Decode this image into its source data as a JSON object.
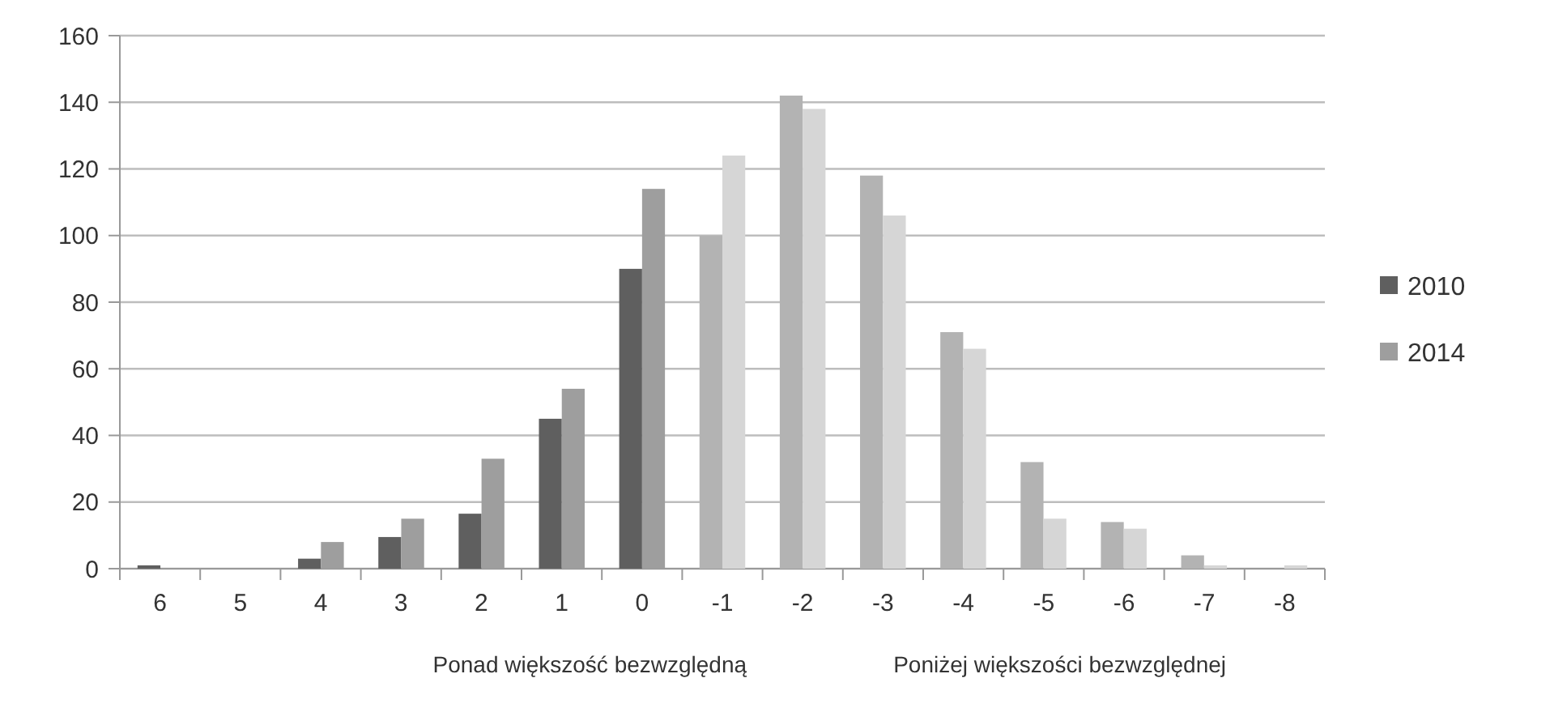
{
  "chart_data": {
    "type": "bar",
    "categories": [
      "6",
      "5",
      "4",
      "3",
      "2",
      "1",
      "0",
      "-1",
      "-2",
      "-3",
      "-4",
      "-5",
      "-6",
      "-7",
      "-8"
    ],
    "series": [
      {
        "name": "2010",
        "color": "#5f5f5f",
        "colors": [
          "#5f5f5f",
          "#5f5f5f",
          "#5f5f5f",
          "#5f5f5f",
          "#5f5f5f",
          "#5f5f5f",
          "#5f5f5f",
          "#b3b3b3",
          "#b3b3b3",
          "#b3b3b3",
          "#b3b3b3",
          "#b3b3b3",
          "#b3b3b3",
          "#b3b3b3",
          "#b3b3b3"
        ],
        "values": [
          1,
          0,
          3,
          9.5,
          16.5,
          45,
          90,
          100,
          142,
          118,
          71,
          32,
          14,
          4,
          0
        ]
      },
      {
        "name": "2014",
        "color": "#9e9e9e",
        "colors": [
          "#9e9e9e",
          "#9e9e9e",
          "#9e9e9e",
          "#9e9e9e",
          "#9e9e9e",
          "#9e9e9e",
          "#9e9e9e",
          "#d6d6d6",
          "#d6d6d6",
          "#d6d6d6",
          "#d6d6d6",
          "#d6d6d6",
          "#d6d6d6",
          "#d6d6d6",
          "#d6d6d6"
        ],
        "values": [
          0,
          0,
          8,
          15,
          33,
          54,
          114,
          124,
          138,
          106,
          66,
          15,
          12,
          1,
          1
        ]
      }
    ],
    "ylim": [
      0,
      160
    ],
    "yticks": [
      0,
      20,
      40,
      60,
      80,
      100,
      120,
      140,
      160
    ],
    "grid": "y",
    "legend": "right",
    "annotations": [
      "Ponad większość bezwzględną",
      "Poniżej większości bezwzględnej"
    ]
  }
}
